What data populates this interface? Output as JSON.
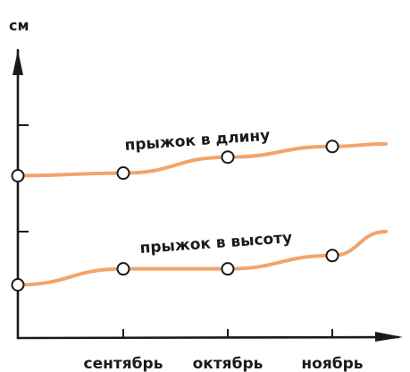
{
  "chart_data": {
    "type": "line",
    "ylabel": "см",
    "categories": [
      "",
      "сентябрь",
      "октябрь",
      "ноябрь",
      ""
    ],
    "ylim": [
      0,
      6
    ],
    "series": [
      {
        "name": "прыжок в длину",
        "values": [
          3.05,
          3.1,
          3.4,
          3.6,
          3.65
        ],
        "markers": [
          true,
          true,
          true,
          true,
          false
        ]
      },
      {
        "name": "прыжок в высоту",
        "values": [
          1.0,
          1.3,
          1.3,
          1.55,
          2.0
        ],
        "markers": [
          true,
          true,
          true,
          true,
          false
        ]
      }
    ],
    "grid": false,
    "colors": {
      "line": "#f2a46c",
      "axis": "#1a1a1a",
      "marker_fill": "#ffffff"
    }
  }
}
